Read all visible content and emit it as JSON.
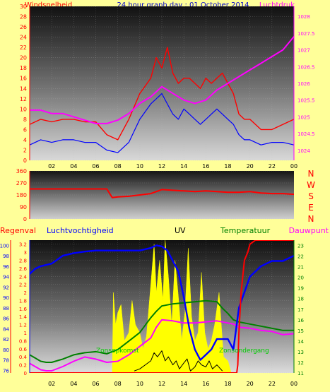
{
  "header": {
    "title": "24 hour graph day : 01 October 2014",
    "left_label": "Windsnelheid",
    "right_label": "Luchtdruk"
  },
  "wind_dir_labels": [
    "N",
    "W",
    "S",
    "E",
    "N"
  ],
  "bottom_labels": {
    "rain": "Regenval",
    "humidity": "Luchtvochtigheid",
    "uv": "UV",
    "temperature": "Temperatuur",
    "dewpoint": "Dauwpunt",
    "sunrise": "Zonsopkomst",
    "sunset": "Zonsondergang"
  },
  "colors": {
    "background": "#ffff99",
    "wind": "#ff0000",
    "gust": "#0000ff",
    "pressure": "#ff00ff",
    "humidity": "#0000ff",
    "uv": "#ffff00",
    "solar": "#000000",
    "temperature": "#008000",
    "dewpoint": "#ff00ff",
    "rain": "#ff0000",
    "title": "#0000cc"
  },
  "chart_data": [
    {
      "type": "line",
      "name": "wind-pressure",
      "x_ticks": [
        "02",
        "04",
        "06",
        "08",
        "10",
        "12",
        "14",
        "16",
        "18",
        "20",
        "22",
        "00"
      ],
      "y_left_ticks": [
        "0",
        "2",
        "4",
        "6",
        "8",
        "10",
        "12",
        "14",
        "16",
        "18",
        "20",
        "22",
        "24",
        "26",
        "28",
        "30"
      ],
      "y_right_ticks": [
        "1024",
        "1024.5",
        "1025",
        "1025.5",
        "1026",
        "1026.5",
        "1027",
        "1027.5",
        "1028"
      ],
      "ylim_left": [
        0,
        30
      ],
      "ylim_right": [
        1023.7,
        1028.3
      ],
      "x_range": [
        0,
        24
      ],
      "grid": true,
      "series": [
        {
          "axis": "left",
          "x": [
            0,
            1,
            2,
            3,
            4,
            5,
            6,
            7,
            8,
            9,
            10,
            11,
            11.5,
            12,
            12.5,
            13,
            13.5,
            14,
            14.5,
            15,
            15.5,
            16,
            16.5,
            17,
            17.5,
            18,
            18.5,
            19,
            19.5,
            20,
            21,
            22,
            23,
            24
          ],
          "y": [
            7,
            8,
            7.5,
            8,
            8,
            7.5,
            7.5,
            5,
            4,
            8,
            13,
            16,
            20,
            18,
            22,
            17,
            15,
            16,
            16,
            15,
            14,
            16,
            15,
            16,
            17,
            15,
            13,
            9,
            8,
            8,
            6,
            6,
            7,
            8
          ]
        },
        {
          "axis": "left",
          "x": [
            0,
            1,
            2,
            3,
            4,
            5,
            6,
            7,
            8,
            9,
            10,
            11,
            11.5,
            12,
            12.5,
            13,
            13.5,
            14,
            14.5,
            15,
            15.5,
            16,
            16.5,
            17,
            17.5,
            18,
            18.5,
            19,
            19.5,
            20,
            21,
            22,
            23,
            24
          ],
          "y": [
            3,
            4,
            3.5,
            4,
            4,
            3.5,
            3.5,
            2,
            1.5,
            3.5,
            8,
            11,
            12,
            13,
            11,
            9,
            8,
            10,
            9,
            8,
            7,
            8,
            9,
            10,
            9,
            8,
            7,
            5,
            4,
            4,
            3,
            3.5,
            3.5,
            3
          ]
        },
        {
          "axis": "right",
          "x": [
            0,
            1,
            2,
            3,
            4,
            5,
            6,
            7,
            8,
            9,
            10,
            11,
            12,
            13,
            14,
            15,
            16,
            17,
            18,
            19,
            20,
            21,
            22,
            23,
            24
          ],
          "y": [
            1025.2,
            1025.2,
            1025.1,
            1025.1,
            1025.0,
            1024.9,
            1024.8,
            1024.8,
            1024.9,
            1025.1,
            1025.4,
            1025.6,
            1025.9,
            1025.7,
            1025.5,
            1025.4,
            1025.5,
            1025.8,
            1026.0,
            1026.2,
            1026.4,
            1026.6,
            1026.8,
            1027.0,
            1027.4
          ]
        }
      ]
    },
    {
      "type": "line",
      "name": "wind-direction",
      "y_ticks": [
        "360",
        "270",
        "180",
        "90",
        "0"
      ],
      "ylim": [
        0,
        360
      ],
      "x_range": [
        0,
        24
      ],
      "series": [
        {
          "x": [
            0,
            1,
            2,
            3,
            4,
            5,
            6,
            7,
            7.5,
            8,
            9,
            10,
            11,
            12,
            13,
            14,
            15,
            16,
            17,
            18,
            19,
            20,
            21,
            22,
            23,
            24
          ],
          "y": [
            225,
            225,
            225,
            225,
            225,
            225,
            225,
            225,
            160,
            165,
            170,
            180,
            190,
            220,
            215,
            210,
            205,
            210,
            205,
            200,
            200,
            205,
            195,
            190,
            190,
            185
          ]
        }
      ]
    },
    {
      "type": "line",
      "name": "climate",
      "x_ticks": [
        "02",
        "04",
        "06",
        "08",
        "10",
        "12",
        "14",
        "16",
        "18",
        "20",
        "22",
        "00"
      ],
      "y_rain_ticks": [
        "0",
        "0.2",
        "0.4",
        "0.6",
        "0.8",
        "1",
        "1.2",
        "1.4",
        "1.6",
        "1.8",
        "2",
        "2.2",
        "2.4",
        "2.6",
        "2.8",
        "3",
        "3.2"
      ],
      "y_humidity_ticks": [
        "76",
        "78",
        "80",
        "82",
        "84",
        "86",
        "88",
        "90",
        "92",
        "94",
        "96",
        "98",
        "100"
      ],
      "y_temperature_ticks": [
        "11",
        "12",
        "13",
        "14",
        "15",
        "16",
        "17",
        "18",
        "19",
        "20",
        "21",
        "22",
        "23"
      ],
      "rain_range": [
        0,
        3.3
      ],
      "humidity_range": [
        75.5,
        101
      ],
      "temperature_range": [
        11,
        23.5
      ],
      "x_range": [
        0,
        24
      ],
      "uv_shape": [
        [
          7.5,
          0
        ],
        [
          7.6,
          2
        ],
        [
          7.8,
          1.2
        ],
        [
          8,
          1.5
        ],
        [
          8.3,
          1.7
        ],
        [
          8.6,
          0.8
        ],
        [
          9,
          1.0
        ],
        [
          9.3,
          1.8
        ],
        [
          9.6,
          1.2
        ],
        [
          10,
          1.0
        ],
        [
          10.3,
          0.6
        ],
        [
          10.6,
          0.9
        ],
        [
          11,
          2.2
        ],
        [
          11.3,
          3.2
        ],
        [
          11.5,
          2.0
        ],
        [
          11.8,
          2.8
        ],
        [
          12.1,
          1.8
        ],
        [
          12.3,
          3.3
        ],
        [
          12.6,
          2.4
        ],
        [
          12.9,
          1.2
        ],
        [
          13.2,
          2.8
        ],
        [
          13.5,
          1.9
        ],
        [
          13.8,
          0.8
        ],
        [
          14.1,
          1.5
        ],
        [
          14.4,
          3.1
        ],
        [
          14.7,
          1.4
        ],
        [
          15.0,
          0.8
        ],
        [
          15.3,
          1.0
        ],
        [
          15.6,
          2.5
        ],
        [
          15.9,
          1.0
        ],
        [
          16.2,
          0.6
        ],
        [
          16.5,
          0.8
        ],
        [
          16.8,
          1.2
        ],
        [
          17.2,
          2.0
        ],
        [
          17.6,
          0.4
        ],
        [
          18,
          0.3
        ],
        [
          18.3,
          0
        ]
      ],
      "series": [
        {
          "axis": "humidity",
          "x": [
            0,
            0.5,
            1,
            2,
            3,
            4,
            5,
            6,
            7,
            8,
            9,
            10,
            11,
            11.5,
            12,
            12.5,
            13,
            13.5,
            14,
            14.5,
            15,
            15.5,
            16,
            16.5,
            17,
            17.5,
            18,
            18.5,
            19,
            20,
            21,
            22,
            23,
            24
          ],
          "y": [
            94.5,
            95.5,
            96,
            96.5,
            98,
            98.5,
            98.8,
            99,
            99,
            99,
            99,
            99,
            99.5,
            100,
            99.8,
            99,
            97,
            95,
            90,
            84,
            80,
            78,
            79,
            80,
            82,
            82,
            82,
            80,
            88,
            94,
            96,
            97,
            97,
            98
          ]
        },
        {
          "axis": "rain",
          "x": [
            9.5,
            10,
            10.5,
            11,
            11.3,
            11.6,
            12,
            12.3,
            12.6,
            13,
            13.3,
            13.6,
            14,
            14.3,
            14.6,
            15,
            15.3,
            15.6,
            16,
            16.3,
            16.6,
            17,
            17.5
          ],
          "y": [
            0.05,
            0.1,
            0.2,
            0.3,
            0.5,
            0.4,
            0.55,
            0.3,
            0.4,
            0.2,
            0.3,
            0.1,
            0.25,
            0.35,
            0.05,
            0.15,
            0.3,
            0.2,
            0.15,
            0.3,
            0.1,
            0.2,
            0.05
          ]
        },
        {
          "axis": "temperature",
          "x": [
            0,
            0.5,
            1,
            1.5,
            2,
            3,
            4,
            5,
            6,
            7,
            8,
            9,
            10,
            11,
            11.5,
            12,
            13,
            14,
            15,
            16,
            17,
            17.5,
            18,
            18.5,
            19,
            20,
            21,
            22,
            23,
            24
          ],
          "y": [
            12.7,
            12.4,
            12.1,
            12.0,
            12.0,
            12.3,
            12.7,
            12.9,
            13.0,
            12.8,
            13.2,
            14.0,
            14.8,
            16.2,
            16.8,
            17.3,
            17.5,
            17.6,
            17.7,
            17.8,
            17.7,
            17.1,
            16.6,
            16.0,
            15.8,
            15.6,
            15.4,
            15.2,
            15.0,
            15.0
          ]
        },
        {
          "axis": "temperature",
          "x": [
            0,
            0.5,
            1,
            1.5,
            2,
            3,
            4,
            5,
            6,
            7,
            8,
            9,
            10,
            11,
            11.5,
            12,
            13,
            14,
            15,
            16,
            17,
            18,
            18.5,
            19,
            20,
            21,
            22,
            23,
            24
          ],
          "y": [
            11.9,
            11.6,
            11.3,
            11.2,
            11.2,
            11.6,
            12.1,
            12.5,
            12.3,
            12.0,
            12.1,
            12.7,
            13.5,
            14.3,
            15.3,
            16.0,
            15.9,
            15.7,
            15.7,
            15.8,
            15.9,
            15.7,
            15.6,
            15.3,
            15.2,
            15.0,
            14.9,
            14.6,
            14.7
          ]
        },
        {
          "axis": "rain",
          "x": [
            0,
            18.8,
            18.9,
            19.0,
            19.2,
            19.5,
            19.8,
            20.0,
            20.5,
            21,
            22,
            23,
            24
          ],
          "y": [
            0,
            0,
            0.2,
            1.0,
            2.0,
            2.8,
            3.0,
            3.2,
            3.3,
            3.3,
            3.3,
            3.3,
            3.3
          ]
        }
      ]
    }
  ]
}
